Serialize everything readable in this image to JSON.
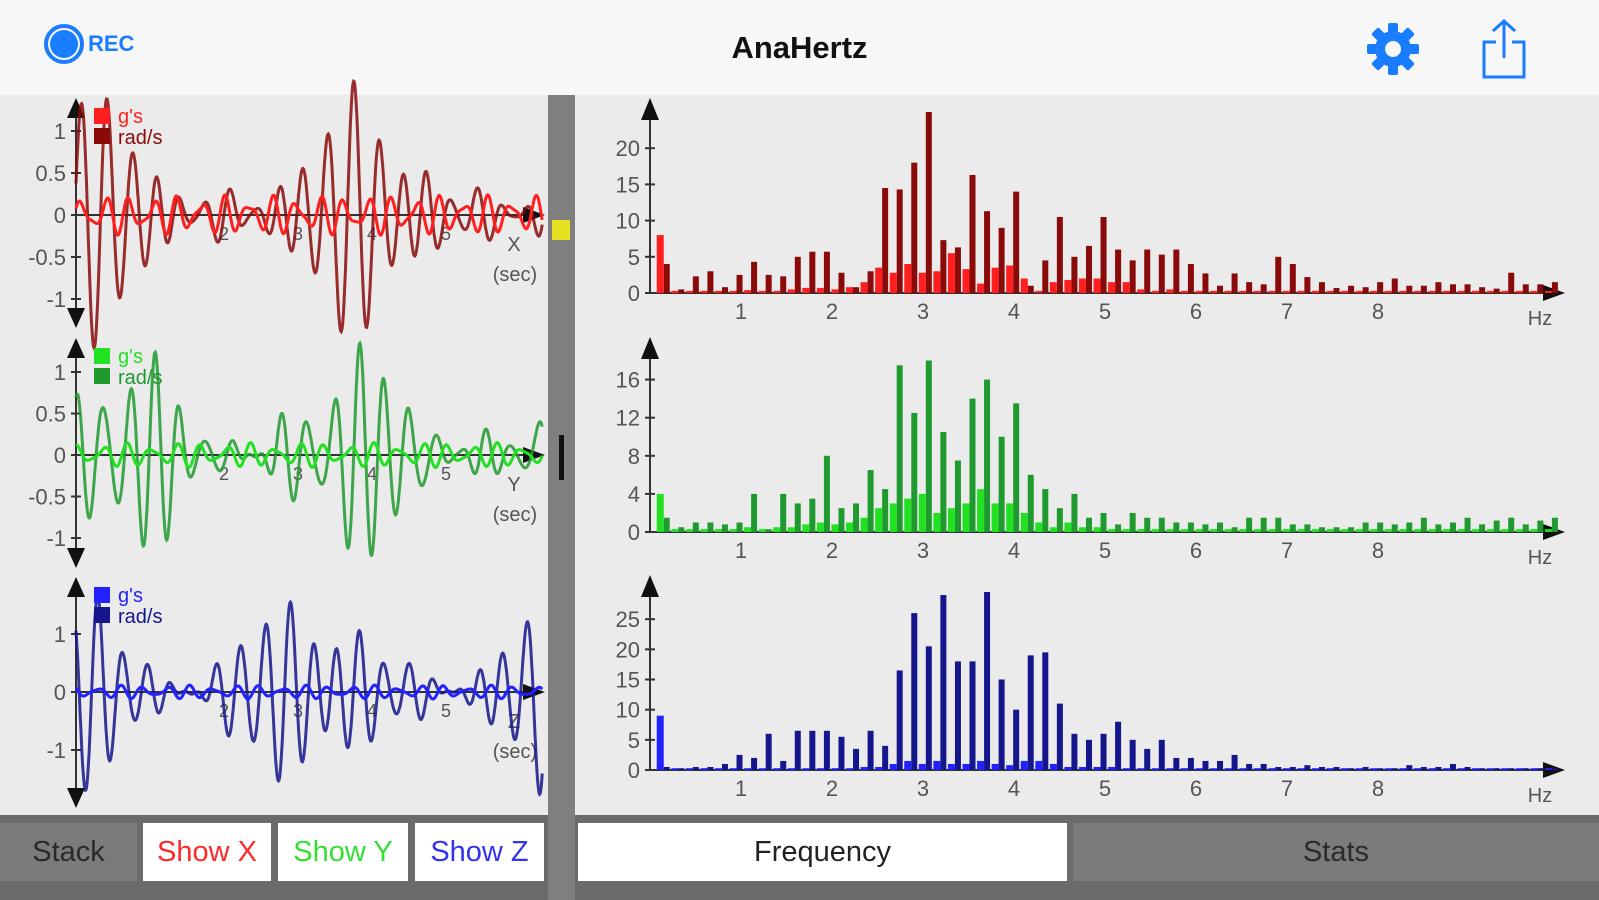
{
  "header": {
    "title": "AnaHertz",
    "rec_label": "REC",
    "icons": [
      "record-icon",
      "gear-icon",
      "share-icon"
    ]
  },
  "bottom_left": {
    "stack": "Stack",
    "show_x": "Show X",
    "show_y": "Show Y",
    "show_z": "Show Z"
  },
  "bottom_right": {
    "frequency": "Frequency",
    "stats": "Stats"
  },
  "colors": {
    "accent": "#1a7cff",
    "red_g": "#ff1f1f",
    "red_rad": "#8a0a0a",
    "green_g": "#22e022",
    "green_rad": "#1f9a2f",
    "blue_g": "#2222ff",
    "blue_rad": "#16168c"
  },
  "legend": {
    "g": "g's",
    "rad": "rad/s"
  },
  "chart_data": [
    {
      "type": "line",
      "axis": "X",
      "xlabel": "(sec)",
      "xticks": [
        2,
        3,
        4,
        5
      ],
      "yticks": [
        -1,
        -0.5,
        0,
        0.5,
        1
      ],
      "xlim": [
        0,
        6.3
      ],
      "ylim": [
        -1.35,
        1.4
      ],
      "model": {
        "rad": {
          "freqs": [
            3.0,
            2.4
          ],
          "amps": [
            1.0,
            0.4
          ],
          "env_period": 3.6,
          "env_phase": 1.2
        },
        "g": {
          "freqs": [
            3.1,
            4.5
          ],
          "amps": [
            0.16,
            0.08
          ]
        }
      }
    },
    {
      "type": "line",
      "axis": "Y",
      "xlabel": "(sec)",
      "xticks": [
        2,
        3,
        4,
        5
      ],
      "yticks": [
        -1,
        -0.5,
        0,
        0.5,
        1
      ],
      "xlim": [
        0,
        6.3
      ],
      "ylim": [
        -1.35,
        1.4
      ],
      "model": {
        "rad": {
          "freqs": [
            2.9,
            3.6
          ],
          "amps": [
            0.9,
            0.35
          ],
          "env_period": 3.2,
          "env_phase": 0.3
        },
        "g": {
          "freqs": [
            3.0,
            4.2
          ],
          "amps": [
            0.1,
            0.05
          ]
        }
      }
    },
    {
      "type": "line",
      "axis": "Z",
      "xlabel": "(sec)",
      "xticks": [
        2,
        3,
        4,
        5
      ],
      "yticks": [
        -1,
        0,
        1
      ],
      "xlim": [
        0,
        6.3
      ],
      "ylim": [
        -2,
        2
      ],
      "model": {
        "rad": {
          "freqs": [
            3.1,
            2.6
          ],
          "amps": [
            1.3,
            0.5
          ],
          "env_period": 3.4,
          "env_phase": 2.0
        },
        "g": {
          "freqs": [
            3.2,
            4.4
          ],
          "amps": [
            0.08,
            0.04
          ]
        }
      }
    },
    {
      "type": "bar",
      "xlabel": "Hz",
      "xticks": [
        1,
        2,
        3,
        4,
        5,
        6,
        7,
        8
      ],
      "yticks": [
        0,
        5,
        10,
        15,
        20
      ],
      "xlim": [
        0,
        9.9
      ],
      "ylim": [
        0,
        25
      ],
      "bin_start": 0.14,
      "bin_width": 0.16,
      "series": [
        {
          "name": "rad/s",
          "values": [
            4,
            0.5,
            2.3,
            3,
            0.8,
            2.5,
            4.3,
            2.5,
            2.3,
            5,
            5.7,
            5.7,
            2.8,
            0.8,
            3,
            14.5,
            14.3,
            18,
            25,
            7.3,
            6.3,
            16.3,
            11.3,
            9,
            14,
            1,
            4.5,
            10.5,
            5,
            6.5,
            10.5,
            6,
            4.5,
            6,
            5.3,
            6,
            4,
            2.7,
            1,
            2.7,
            1.5,
            1.2,
            5,
            4,
            2.2,
            1.5,
            0.7,
            1,
            0.8,
            1.5,
            2,
            1,
            1,
            1.5,
            1.2,
            1.2,
            0.8,
            0.6,
            2.8,
            1.2,
            1.2,
            1.5
          ]
        },
        {
          "name": "g's",
          "values": [
            8,
            0.3,
            0.3,
            0.3,
            0.3,
            0.3,
            0.4,
            0.3,
            0.3,
            0.5,
            0.7,
            0.7,
            0.5,
            0.8,
            1.5,
            3.5,
            2.8,
            4,
            2.8,
            3,
            5.5,
            3.3,
            1.3,
            3.5,
            3.8,
            2,
            0.3,
            1.5,
            1.8,
            2,
            2,
            1.5,
            1.5,
            0.5,
            0.3,
            0.5,
            0.3,
            0.3,
            0.3,
            0.3,
            0.3,
            0.3,
            0.3,
            0.3,
            0.3,
            0.3,
            0.3,
            0.3,
            0.3,
            0.3,
            0.3,
            0.3,
            0.3,
            0.3,
            0.3,
            0.3,
            0.3,
            0.3,
            0.3,
            0.3,
            0.3,
            0.3
          ]
        }
      ]
    },
    {
      "type": "bar",
      "xlabel": "Hz",
      "xticks": [
        1,
        2,
        3,
        4,
        5,
        6,
        7,
        8
      ],
      "yticks": [
        0,
        4,
        8,
        12,
        16
      ],
      "xlim": [
        0,
        9.9
      ],
      "ylim": [
        0,
        19
      ],
      "bin_start": 0.14,
      "bin_width": 0.16,
      "series": [
        {
          "name": "rad/s",
          "values": [
            1.5,
            0.5,
            1,
            1,
            0.8,
            1,
            4,
            0.3,
            4,
            3,
            3.5,
            8,
            2.5,
            3,
            6.5,
            4.5,
            17.5,
            12.5,
            18,
            10.5,
            7.5,
            14,
            16,
            10,
            13.5,
            6,
            4.5,
            2.5,
            4,
            1.5,
            2,
            0.8,
            2,
            1.5,
            1.5,
            1,
            1,
            0.8,
            1,
            0.5,
            1.5,
            1.5,
            1.5,
            0.8,
            0.8,
            0.5,
            0.5,
            0.5,
            1,
            1,
            0.8,
            1,
            1.5,
            0.8,
            1,
            1.5,
            0.8,
            1.2,
            1.5,
            0.8,
            1.2,
            1.5
          ]
        },
        {
          "name": "g's",
          "values": [
            4,
            0.3,
            0.3,
            0.3,
            0.3,
            0.3,
            0.5,
            0.3,
            0.5,
            0.5,
            0.8,
            1,
            0.8,
            1,
            1.5,
            2.5,
            3,
            3.5,
            4,
            2,
            2.5,
            3,
            4.5,
            3,
            3,
            2,
            1,
            0.5,
            1,
            0.5,
            0.5,
            0.3,
            0.3,
            0.3,
            0.3,
            0.3,
            0.3,
            0.3,
            0.3,
            0.3,
            0.3,
            0.3,
            0.3,
            0.3,
            0.3,
            0.3,
            0.3,
            0.3,
            0.3,
            0.3,
            0.3,
            0.3,
            0.3,
            0.3,
            0.3,
            0.3,
            0.3,
            0.3,
            0.3,
            0.3,
            0.3,
            0.3
          ]
        }
      ]
    },
    {
      "type": "bar",
      "xlabel": "Hz",
      "xticks": [
        1,
        2,
        3,
        4,
        5,
        6,
        7,
        8
      ],
      "yticks": [
        0,
        5,
        10,
        15,
        20,
        25
      ],
      "xlim": [
        0,
        9.9
      ],
      "ylim": [
        0,
        30
      ],
      "bin_start": 0.14,
      "bin_width": 0.16,
      "series": [
        {
          "name": "rad/s",
          "values": [
            0.5,
            0.3,
            0.5,
            0.5,
            1,
            2.5,
            2,
            6,
            1.5,
            6.5,
            6.5,
            6.5,
            5.5,
            3.5,
            6.5,
            4,
            16.5,
            26,
            20.5,
            29,
            18,
            18,
            29.5,
            15,
            10,
            19,
            19.5,
            11,
            6,
            5,
            6,
            8,
            5,
            3.5,
            5,
            2,
            2,
            1.5,
            1.5,
            2.5,
            1,
            1,
            0.5,
            0.5,
            0.8,
            0.5,
            0.5,
            0.3,
            0.5,
            0.3,
            0.3,
            0.8,
            0.5,
            0.5,
            1,
            0.5,
            0.3,
            0.3,
            0.3,
            0.3,
            0.3,
            0.3
          ]
        },
        {
          "name": "g's",
          "values": [
            9,
            0.3,
            0.3,
            0.3,
            0.3,
            0.3,
            0.3,
            0.3,
            0.3,
            0.3,
            0.3,
            0.3,
            0.3,
            0.3,
            0.5,
            0.5,
            1,
            1.5,
            1,
            1.5,
            1,
            1,
            1.5,
            1,
            0.8,
            1.5,
            1.5,
            1,
            0.5,
            0.5,
            0.5,
            0.5,
            0.3,
            0.3,
            0.3,
            0.3,
            0.3,
            0.3,
            0.3,
            0.3,
            0.3,
            0.3,
            0.3,
            0.3,
            0.3,
            0.3,
            0.3,
            0.3,
            0.3,
            0.3,
            0.3,
            0.3,
            0.3,
            0.3,
            0.3,
            0.3,
            0.3,
            0.3,
            0.3,
            0.3,
            0.3,
            0.3
          ]
        }
      ]
    }
  ]
}
